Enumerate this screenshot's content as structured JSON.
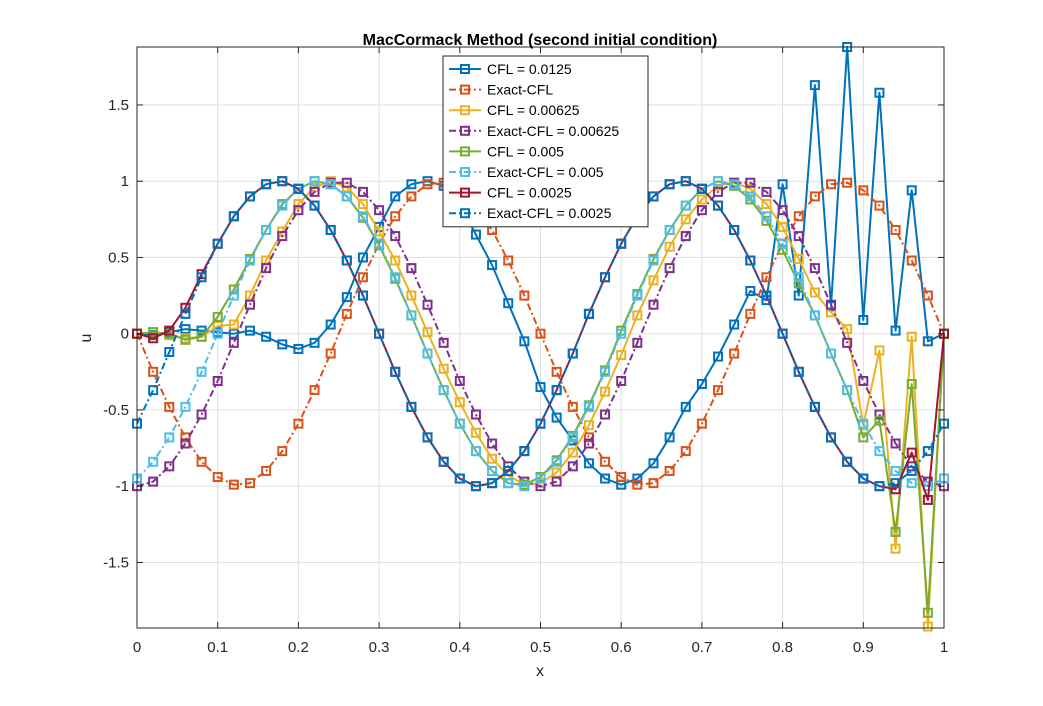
{
  "chart_data": {
    "type": "line",
    "title": "MacCormack Method (second initial condition)",
    "xlabel": "x",
    "ylabel": "u",
    "xlim": [
      0,
      1
    ],
    "ylim": [
      -1.93,
      1.88
    ],
    "x_ticks": [
      0,
      0.1,
      0.2,
      0.3,
      0.4,
      0.5,
      0.6,
      0.7,
      0.8,
      0.9,
      1
    ],
    "x_tick_labels": [
      "0",
      "0.1",
      "0.2",
      "0.3",
      "0.4",
      "0.5",
      "0.6",
      "0.7",
      "0.8",
      "0.9",
      "1"
    ],
    "y_ticks": [
      -1.5,
      -1,
      -0.5,
      0,
      0.5,
      1,
      1.5
    ],
    "y_tick_labels": [
      "-1.5",
      "-1",
      "-0.5",
      "0",
      "0.5",
      "1",
      "1.5"
    ],
    "grid": true,
    "legend_position": "top-center",
    "x": [
      0,
      0.02,
      0.04,
      0.06,
      0.08,
      0.1,
      0.12,
      0.14,
      0.16,
      0.18,
      0.2,
      0.22,
      0.24,
      0.26,
      0.28,
      0.3,
      0.32,
      0.34,
      0.36,
      0.38,
      0.4,
      0.42,
      0.44,
      0.46,
      0.48,
      0.5,
      0.52,
      0.54,
      0.56,
      0.58,
      0.6,
      0.62,
      0.64,
      0.66,
      0.68,
      0.7,
      0.72,
      0.74,
      0.76,
      0.78,
      0.8,
      0.82,
      0.84,
      0.86,
      0.88,
      0.9,
      0.92,
      0.94,
      0.96,
      0.98,
      1
    ],
    "series": [
      {
        "name": "CFL = 0.0125",
        "color": "#0072BD",
        "dash": "solid",
        "values": [
          0,
          -0.01,
          0.01,
          0.03,
          0.02,
          0.01,
          0.0,
          0.02,
          -0.02,
          -0.07,
          -0.1,
          -0.06,
          0.06,
          0.24,
          0.5,
          0.7,
          0.9,
          0.98,
          1.0,
          0.97,
          0.85,
          0.65,
          0.45,
          0.2,
          -0.05,
          -0.35,
          -0.55,
          -0.7,
          -0.85,
          -0.95,
          -0.99,
          -0.95,
          -0.85,
          -0.68,
          -0.48,
          -0.33,
          -0.15,
          0.06,
          0.28,
          0.22,
          0.98,
          0.25,
          1.63,
          0.18,
          1.88,
          0.09,
          1.58,
          0.02,
          0.94,
          -0.05,
          0
        ]
      },
      {
        "name": "Exact-CFL",
        "color": "#D95319",
        "dash": "dashdot",
        "values": [
          0,
          -0.25,
          -0.48,
          -0.68,
          -0.84,
          -0.94,
          -0.99,
          -0.98,
          -0.9,
          -0.77,
          -0.59,
          -0.37,
          -0.13,
          0.13,
          0.37,
          0.59,
          0.77,
          0.9,
          0.98,
          0.99,
          0.94,
          0.84,
          0.68,
          0.48,
          0.25,
          0,
          -0.25,
          -0.48,
          -0.68,
          -0.84,
          -0.94,
          -0.99,
          -0.98,
          -0.9,
          -0.77,
          -0.59,
          -0.37,
          -0.13,
          0.13,
          0.37,
          0.59,
          0.77,
          0.9,
          0.98,
          0.99,
          0.94,
          0.84,
          0.68,
          0.48,
          0.25,
          0
        ]
      },
      {
        "name": "CFL = 0.00625",
        "color": "#EDB120",
        "dash": "solid",
        "values": [
          0,
          0.01,
          -0.01,
          -0.03,
          -0.02,
          0.05,
          0.06,
          0.25,
          0.48,
          0.67,
          0.85,
          0.96,
          1.0,
          0.96,
          0.85,
          0.67,
          0.48,
          0.25,
          0.01,
          -0.23,
          -0.45,
          -0.65,
          -0.82,
          -0.93,
          -0.99,
          -0.98,
          -0.91,
          -0.78,
          -0.6,
          -0.38,
          -0.14,
          0.12,
          0.35,
          0.57,
          0.75,
          0.88,
          0.97,
          0.99,
          0.95,
          0.85,
          0.7,
          0.49,
          0.27,
          0.14,
          0.03,
          -0.6,
          -0.11,
          -1.41,
          -0.02,
          -1.92,
          0
        ]
      },
      {
        "name": "Exact-CFL = 0.00625",
        "color": "#7E2F8E",
        "dash": "dashdot",
        "values": [
          -1,
          -0.97,
          -0.87,
          -0.72,
          -0.53,
          -0.31,
          -0.06,
          0.19,
          0.43,
          0.64,
          0.81,
          0.93,
          0.99,
          0.99,
          0.93,
          0.81,
          0.64,
          0.43,
          0.19,
          -0.06,
          -0.31,
          -0.53,
          -0.72,
          -0.87,
          -0.97,
          -1.0,
          -0.97,
          -0.87,
          -0.72,
          -0.53,
          -0.31,
          -0.06,
          0.19,
          0.43,
          0.64,
          0.81,
          0.93,
          0.99,
          0.99,
          0.93,
          0.81,
          0.64,
          0.43,
          0.19,
          -0.06,
          -0.31,
          -0.53,
          -0.72,
          -0.87,
          -0.97,
          -1.0
        ]
      },
      {
        "name": "CFL = 0.005",
        "color": "#77AC30",
        "dash": "solid",
        "values": [
          0,
          0.01,
          0.0,
          -0.04,
          -0.02,
          0.11,
          0.29,
          0.49,
          0.68,
          0.85,
          0.95,
          1.0,
          0.98,
          0.9,
          0.76,
          0.58,
          0.36,
          0.12,
          -0.13,
          -0.37,
          -0.59,
          -0.77,
          -0.9,
          -0.98,
          -0.99,
          -0.94,
          -0.83,
          -0.67,
          -0.47,
          -0.24,
          0.02,
          0.26,
          0.49,
          0.68,
          0.84,
          0.95,
          1.0,
          0.97,
          0.88,
          0.74,
          0.55,
          0.33,
          0.12,
          -0.13,
          -0.37,
          -0.68,
          -0.57,
          -1.3,
          -0.33,
          -1.83,
          0
        ]
      },
      {
        "name": "Exact-CFL = 0.005",
        "color": "#4DBEEE",
        "dash": "dashdot",
        "values": [
          -0.95,
          -0.84,
          -0.68,
          -0.48,
          -0.25,
          0,
          0.25,
          0.48,
          0.68,
          0.84,
          0.95,
          1.0,
          0.98,
          0.9,
          0.77,
          0.59,
          0.37,
          0.12,
          -0.13,
          -0.37,
          -0.59,
          -0.77,
          -0.9,
          -0.98,
          -1.0,
          -0.95,
          -0.84,
          -0.68,
          -0.48,
          -0.25,
          0,
          0.25,
          0.48,
          0.68,
          0.84,
          0.95,
          1.0,
          0.98,
          0.9,
          0.77,
          0.59,
          0.37,
          0.12,
          -0.13,
          -0.37,
          -0.59,
          -0.77,
          -0.9,
          -0.98,
          -1.0,
          -0.95
        ]
      },
      {
        "name": "CFL = 0.0025",
        "color": "#A2142F",
        "dash": "solid",
        "values": [
          0,
          -0.03,
          0.02,
          0.17,
          0.39,
          0.59,
          0.77,
          0.9,
          0.98,
          1.0,
          0.95,
          0.84,
          0.68,
          0.48,
          0.25,
          0.0,
          -0.25,
          -0.48,
          -0.68,
          -0.84,
          -0.95,
          -1.0,
          -0.98,
          -0.9,
          -0.77,
          -0.59,
          -0.37,
          -0.13,
          0.13,
          0.37,
          0.59,
          0.77,
          0.9,
          0.98,
          1.0,
          0.95,
          0.84,
          0.68,
          0.48,
          0.25,
          0.0,
          -0.25,
          -0.48,
          -0.68,
          -0.84,
          -0.95,
          -1.0,
          -1.02,
          -0.78,
          -1.09,
          0
        ]
      },
      {
        "name": "Exact-CFL = 0.0025",
        "color": "#0072BD",
        "dash": "dashdot",
        "values": [
          -0.59,
          -0.37,
          -0.12,
          0.13,
          0.37,
          0.59,
          0.77,
          0.9,
          0.98,
          1.0,
          0.95,
          0.84,
          0.68,
          0.48,
          0.25,
          0.0,
          -0.25,
          -0.48,
          -0.68,
          -0.84,
          -0.95,
          -1.0,
          -0.98,
          -0.9,
          -0.77,
          -0.59,
          -0.37,
          -0.13,
          0.13,
          0.37,
          0.59,
          0.77,
          0.9,
          0.98,
          1.0,
          0.95,
          0.84,
          0.68,
          0.48,
          0.25,
          0.0,
          -0.25,
          -0.48,
          -0.68,
          -0.84,
          -0.95,
          -1.0,
          -0.98,
          -0.9,
          -0.77,
          -0.59
        ]
      }
    ]
  }
}
